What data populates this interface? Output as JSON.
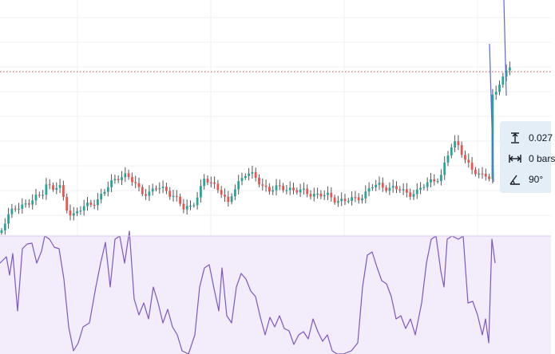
{
  "colors": {
    "up": "#26a69a",
    "down": "#ef5350",
    "wick": "#555555",
    "grid": "#eef0f3",
    "price_line": "#d24b4b",
    "drawing_line": "#5b6bd6",
    "indicator_line": "#7e57c2",
    "indicator_bg": "#f2ecfb",
    "tooltip_bg": "#e4eef7"
  },
  "measure_tooltip": {
    "price_range": "0.027",
    "bar_range": "0 bars",
    "angle": "90°",
    "icons": [
      "vertical-range-icon",
      "horizontal-range-icon",
      "angle-icon"
    ]
  },
  "chart_data": [
    {
      "type": "candlestick",
      "title": "",
      "ohlc": [],
      "grid": true
    },
    {
      "type": "line",
      "title": "",
      "series": [
        {
          "values": []
        }
      ],
      "grid": true
    }
  ]
}
